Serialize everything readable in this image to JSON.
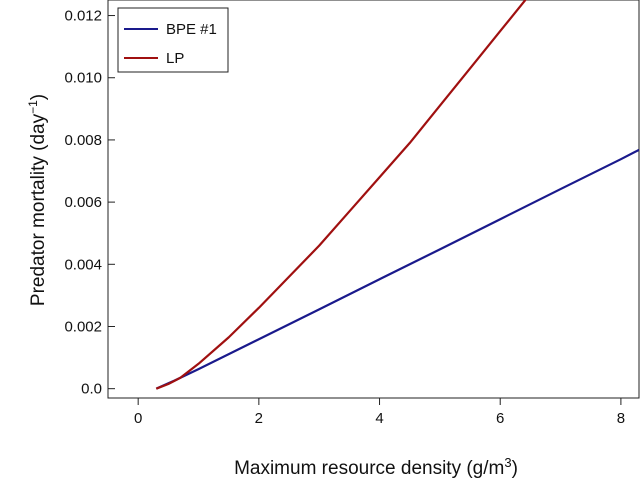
{
  "chart_data": {
    "type": "line",
    "title": "",
    "xlabel": "Maximum resource density  (g/m",
    "xlabel_superscript": "3",
    "xlabel_suffix": ")",
    "ylabel": "Predator mortality (day",
    "ylabel_superscript": "−1",
    "ylabel_suffix": ")",
    "xlim": [
      -0.5,
      8.3
    ],
    "ylim": [
      -0.0003,
      0.0125
    ],
    "xticks": [
      0,
      2,
      4,
      6,
      8
    ],
    "xtick_labels": [
      "0",
      "2",
      "4",
      "6",
      "8"
    ],
    "yticks": [
      0.0,
      0.002,
      0.004,
      0.006,
      0.008,
      0.01,
      0.012
    ],
    "ytick_labels": [
      "0.0",
      "0.002",
      "0.004",
      "0.006",
      "0.008",
      "0.010",
      "0.012"
    ],
    "grid": false,
    "legend_position": "top-left",
    "series": [
      {
        "name": "BPE #1",
        "color": "#1a1a8c",
        "x": [
          0.3,
          0.6,
          1.0,
          2.0,
          3.0,
          4.0,
          5.0,
          6.0,
          7.0,
          8.0,
          8.3
        ],
        "y": [
          0.0,
          0.00026,
          0.00063,
          0.00159,
          0.00255,
          0.00352,
          0.00448,
          0.00545,
          0.00642,
          0.00738,
          0.00768
        ]
      },
      {
        "name": "LP",
        "color": "#a01010",
        "x": [
          0.3,
          0.5,
          0.7,
          1.0,
          1.5,
          2.0,
          2.5,
          3.0,
          3.5,
          4.0,
          4.5,
          5.0,
          5.5,
          6.0,
          6.5,
          6.8
        ],
        "y": [
          0.0,
          0.00015,
          0.00035,
          0.0008,
          0.00165,
          0.0026,
          0.0036,
          0.0046,
          0.0057,
          0.0068,
          0.0079,
          0.0091,
          0.0103,
          0.0115,
          0.0127,
          0.0134
        ]
      }
    ]
  }
}
